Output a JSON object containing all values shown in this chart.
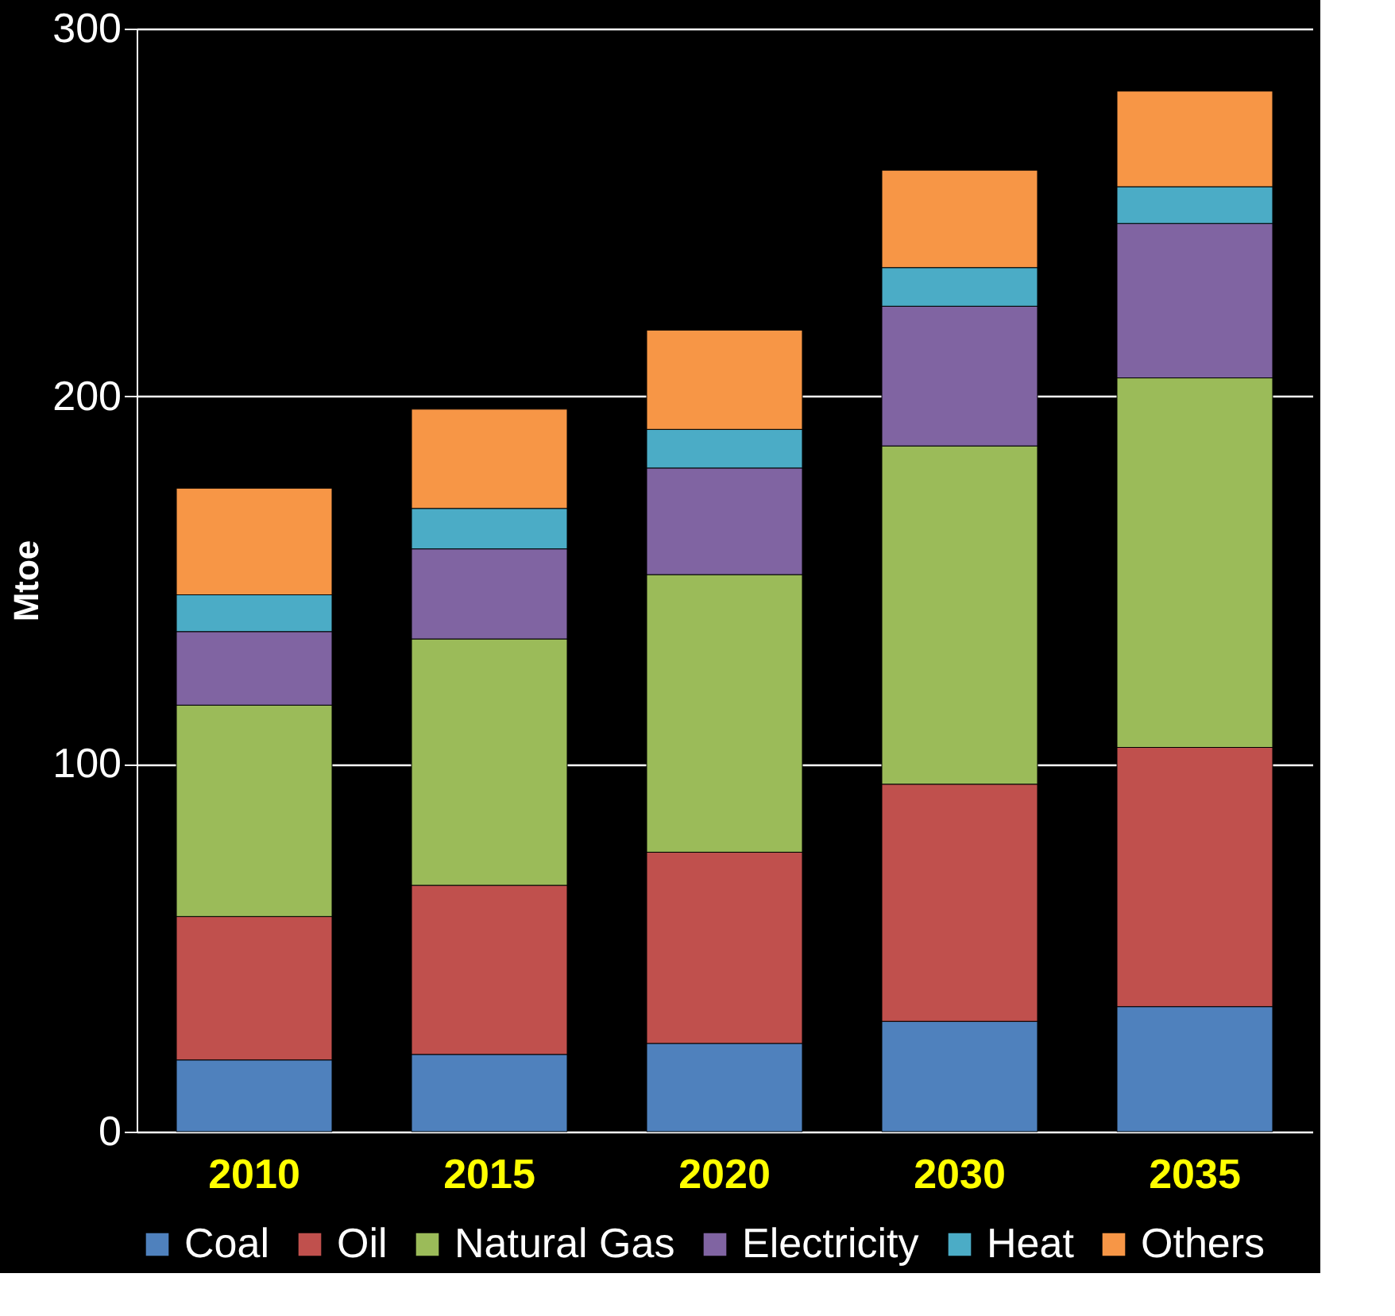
{
  "chart_data": {
    "type": "bar",
    "stacked": true,
    "ylabel": "Mtoe",
    "categories": [
      "2010",
      "2015",
      "2020",
      "2030",
      "2035"
    ],
    "series": [
      {
        "name": "Coal",
        "color": "#4f81bd",
        "values": [
          19.5,
          21,
          24,
          30,
          34
        ]
      },
      {
        "name": "Oil",
        "color": "#c0504d",
        "values": [
          39,
          46,
          52,
          64.5,
          70.5
        ]
      },
      {
        "name": "Natural Gas",
        "color": "#9bbb59",
        "values": [
          57.5,
          67,
          75.5,
          92,
          100.5
        ]
      },
      {
        "name": "Electricity",
        "color": "#8064a2",
        "values": [
          20,
          24.5,
          29,
          38,
          42
        ]
      },
      {
        "name": "Heat",
        "color": "#4bacc6",
        "values": [
          10,
          11,
          10.5,
          10.5,
          10
        ]
      },
      {
        "name": "Others",
        "color": "#f79646",
        "values": [
          29,
          27,
          27,
          26.5,
          26
        ]
      }
    ],
    "ylim": [
      0,
      300
    ],
    "yticks": [
      0,
      100,
      200,
      300
    ],
    "grid": "y",
    "legend": "bottom"
  }
}
